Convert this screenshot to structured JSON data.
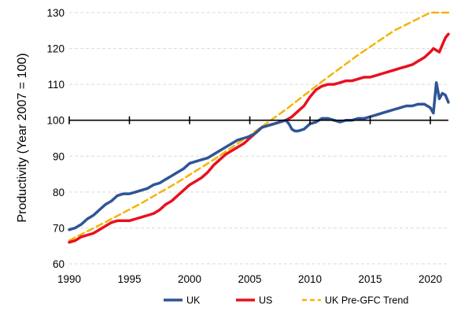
{
  "chart_data": {
    "type": "line",
    "title": "",
    "xlabel": "",
    "ylabel": "Productivity (Year 2007 = 100)",
    "xlim": [
      1990,
      2021.5
    ],
    "ylim": [
      60,
      130
    ],
    "x_ticks": [
      "1990",
      "1995",
      "2000",
      "2005",
      "2010",
      "2015",
      "2020"
    ],
    "y_ticks": [
      "60",
      "70",
      "80",
      "90",
      "100",
      "110",
      "120",
      "130"
    ],
    "grid": "horizontal dashed",
    "reference_line": 100,
    "legend_position": "bottom",
    "series": [
      {
        "name": "UK",
        "color": "#2e5597",
        "style": "solid",
        "x": [
          1990,
          1990.5,
          1991,
          1991.5,
          1992,
          1992.5,
          1993,
          1993.5,
          1994,
          1994.5,
          1995,
          1995.5,
          1996,
          1996.5,
          1997,
          1997.5,
          1998,
          1998.5,
          1999,
          1999.5,
          2000,
          2000.5,
          2001,
          2001.5,
          2002,
          2002.5,
          2003,
          2003.5,
          2004,
          2004.5,
          2005,
          2005.5,
          2006,
          2006.5,
          2007,
          2007.5,
          2008,
          2008.25,
          2008.5,
          2008.75,
          2009,
          2009.5,
          2010,
          2010.5,
          2011,
          2011.5,
          2012,
          2012.5,
          2013,
          2013.5,
          2014,
          2014.5,
          2015,
          2015.5,
          2016,
          2016.5,
          2017,
          2017.5,
          2018,
          2018.5,
          2019,
          2019.5,
          2020,
          2020.25,
          2020.5,
          2020.75,
          2021,
          2021.25,
          2021.5
        ],
        "values": [
          69.5,
          70,
          71,
          72.5,
          73.5,
          75,
          76.5,
          77.5,
          79,
          79.5,
          79.5,
          80,
          80.5,
          81,
          82,
          82.5,
          83.5,
          84.5,
          85.5,
          86.5,
          88,
          88.5,
          89,
          89.5,
          90.5,
          91.5,
          92.5,
          93.5,
          94.5,
          95,
          95.5,
          96.5,
          98,
          98.5,
          99,
          99.5,
          100,
          99,
          97.5,
          97,
          97,
          97.5,
          99,
          99.5,
          100.5,
          100.5,
          100,
          99.5,
          100,
          100,
          100.5,
          100.5,
          101,
          101.5,
          102,
          102.5,
          103,
          103.5,
          104,
          104,
          104.5,
          104.5,
          103.5,
          102,
          110.5,
          106,
          107.5,
          107,
          105
        ]
      },
      {
        "name": "US",
        "color": "#e8111f",
        "style": "solid",
        "x": [
          1990,
          1990.5,
          1991,
          1991.5,
          1992,
          1992.5,
          1993,
          1993.5,
          1994,
          1994.5,
          1995,
          1995.5,
          1996,
          1996.5,
          1997,
          1997.5,
          1998,
          1998.5,
          1999,
          1999.5,
          2000,
          2000.5,
          2001,
          2001.5,
          2002,
          2002.5,
          2003,
          2003.5,
          2004,
          2004.5,
          2005,
          2005.5,
          2006,
          2006.5,
          2007,
          2007.5,
          2008,
          2008.5,
          2009,
          2009.5,
          2010,
          2010.5,
          2011,
          2011.5,
          2012,
          2012.5,
          2013,
          2013.5,
          2014,
          2014.5,
          2015,
          2015.5,
          2016,
          2016.5,
          2017,
          2017.5,
          2018,
          2018.5,
          2019,
          2019.5,
          2020,
          2020.25,
          2020.5,
          2020.75,
          2021,
          2021.25,
          2021.5
        ],
        "values": [
          66,
          66.5,
          67.5,
          68,
          68.5,
          69.5,
          70.5,
          71.5,
          72,
          72,
          72,
          72.5,
          73,
          73.5,
          74,
          75,
          76.5,
          77.5,
          79,
          80.5,
          82,
          83,
          84,
          85.5,
          87.5,
          89,
          90.5,
          91.5,
          92.5,
          93.5,
          95,
          96.5,
          98,
          98.5,
          99,
          99.5,
          100,
          101,
          102.5,
          104,
          106.5,
          108.5,
          109.5,
          110,
          110,
          110.5,
          111,
          111,
          111.5,
          112,
          112,
          112.5,
          113,
          113.5,
          114,
          114.5,
          115,
          115.5,
          116.5,
          117.5,
          119,
          120,
          119.5,
          119,
          121,
          123,
          124
        ]
      },
      {
        "name": "UK Pre-GFC Trend",
        "color": "#f4b400",
        "style": "dashed",
        "x": [
          1990,
          1993,
          1996,
          1999,
          2002,
          2005,
          2008,
          2011,
          2014,
          2017,
          2020,
          2021.5
        ],
        "values": [
          66.5,
          71.6,
          76.9,
          82.7,
          89,
          95.8,
          103,
          110.8,
          118.2,
          125,
          130,
          130
        ]
      }
    ]
  }
}
